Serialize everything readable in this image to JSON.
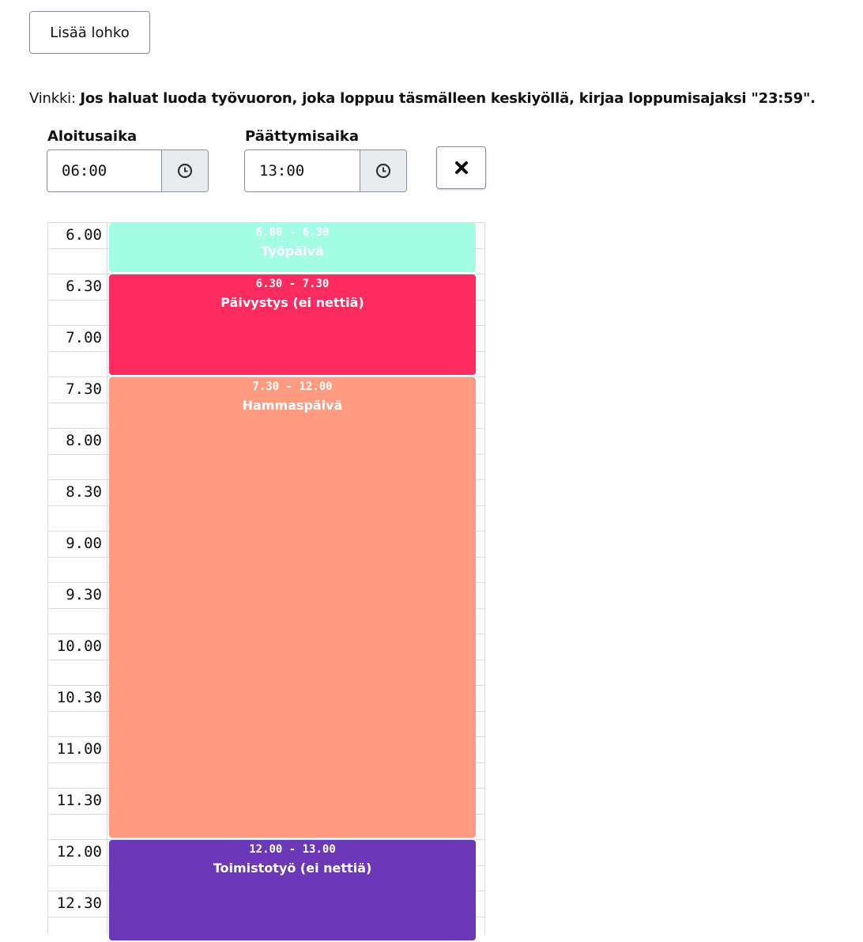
{
  "button": {
    "label": "Lisää lohko"
  },
  "hint": {
    "prefix": "Vinkki:",
    "text": "Jos haluat luoda työvuoron, joka loppuu täsmälleen keskiyöllä, kirjaa loppumisajaksi \"23:59\"."
  },
  "form": {
    "start": {
      "label": "Aloitusaika",
      "value": "06:00"
    },
    "end": {
      "label": "Päättymisaika",
      "value": "13:00"
    }
  },
  "calendar": {
    "times": [
      "6.00",
      "6.30",
      "7.00",
      "7.30",
      "8.00",
      "8.30",
      "9.00",
      "9.30",
      "10.00",
      "10.30",
      "11.00",
      "11.30",
      "12.00",
      "12.30"
    ],
    "events": [
      {
        "time": "6.00 - 6.30",
        "title": "Työpäivä",
        "color": "#a3fde2"
      },
      {
        "time": "6.30 - 7.30",
        "title": "Päivystys (ei nettiä)",
        "color": "#fb2a5f"
      },
      {
        "time": "7.30 - 12.00",
        "title": "Hammaspäivä",
        "color": "#fe9b80"
      },
      {
        "time": "12.00 - 13.00",
        "title": "Toimistotyö (ei nettiä)",
        "color": "#6b38b8"
      }
    ]
  }
}
